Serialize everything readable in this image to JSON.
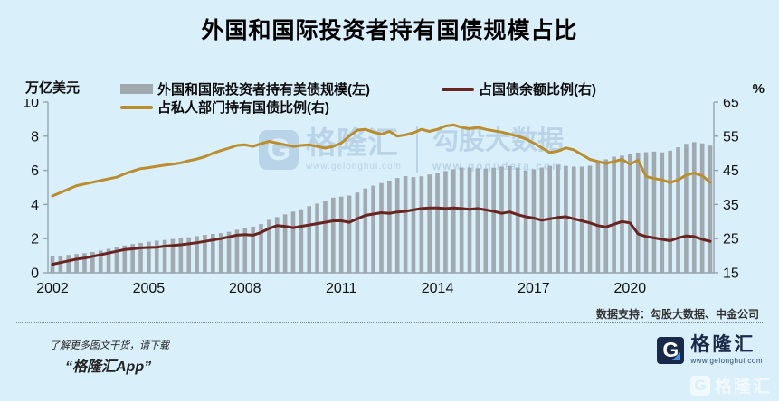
{
  "title": "外国和国际投资者持有国债规模占比",
  "legend": [
    {
      "label": "外国和国际投资者持有美债规模(左)",
      "type": "bar",
      "color": "#a0a9b0"
    },
    {
      "label": "占国债余额比例(右)",
      "type": "line",
      "color": "#6a2420"
    },
    {
      "label": "占私人部门持有国债比例(右)",
      "type": "line",
      "color": "#bb8e2d"
    }
  ],
  "axes": {
    "left_unit": "万亿美元",
    "right_unit": "%"
  },
  "watermark": {
    "logo_letter": "G",
    "logo_text": "格隆汇",
    "logo_url": "www.gelonghui.com",
    "brand": "勾股大数据",
    "brand_url": "www.gogudata.com"
  },
  "source_note": "数据支持：勾股大数据、中金公司",
  "footer": {
    "promo_line1": "了解更多图文干货，请下载",
    "promo_line2": "“格隆汇App”",
    "logo_letter": "G",
    "logo_text": "格隆汇",
    "logo_url": "www.gelonghui.com"
  },
  "colors": {
    "background": "#d9eff9",
    "bar": "#a0a9b0",
    "line_red": "#6a2420",
    "line_gold": "#bb8e2d",
    "axis": "#93a3ac",
    "watermark_blue": "#b9d3e8",
    "logo_navy": "#18294a"
  },
  "chart_data": {
    "type": "bar",
    "note": "gray bars on left axis (trillion USD), two lines on right axis (%); quarterly 2002Q1-2022Q3",
    "x_start": "2002Q1",
    "x_freq": "quarterly",
    "x_tick_labels": [
      "2002",
      "2005",
      "2008",
      "2011",
      "2014",
      "2017",
      "2020"
    ],
    "x_tick_indices": [
      0,
      12,
      24,
      36,
      48,
      60,
      72
    ],
    "y_left": {
      "label": "万亿美元",
      "range": [
        0,
        10
      ],
      "ticks": [
        0,
        2,
        4,
        6,
        8,
        10
      ]
    },
    "y_right": {
      "label": "%",
      "range": [
        15,
        65
      ],
      "ticks": [
        15,
        25,
        35,
        45,
        55,
        65
      ]
    },
    "grid": false,
    "legend_position": "top",
    "series": [
      {
        "name": "外国和国际投资者持有美债规模(左)",
        "type": "bar",
        "axis": "left",
        "color": "#a0a9b0",
        "values": [
          0.95,
          1.0,
          1.05,
          1.1,
          1.15,
          1.22,
          1.3,
          1.4,
          1.5,
          1.6,
          1.68,
          1.75,
          1.82,
          1.88,
          1.92,
          1.98,
          2.02,
          2.08,
          2.15,
          2.22,
          2.28,
          2.32,
          2.4,
          2.52,
          2.62,
          2.7,
          2.85,
          3.1,
          3.26,
          3.42,
          3.58,
          3.72,
          3.9,
          4.05,
          4.22,
          4.4,
          4.46,
          4.52,
          4.7,
          4.94,
          5.1,
          5.25,
          5.4,
          5.55,
          5.66,
          5.6,
          5.65,
          5.76,
          5.86,
          5.96,
          6.06,
          6.16,
          6.16,
          6.12,
          6.1,
          6.15,
          6.22,
          6.26,
          6.16,
          6.0,
          6.06,
          6.16,
          6.26,
          6.32,
          6.26,
          6.22,
          6.22,
          6.27,
          6.46,
          6.64,
          6.8,
          6.86,
          6.96,
          7.04,
          7.06,
          7.1,
          7.05,
          7.15,
          7.35,
          7.55,
          7.65,
          7.58,
          7.45
        ]
      },
      {
        "name": "占国债余额比例(右)",
        "type": "line",
        "axis": "right",
        "color": "#6a2420",
        "values": [
          17.5,
          18.0,
          18.5,
          19.0,
          19.3,
          19.8,
          20.3,
          20.8,
          21.3,
          21.8,
          22.0,
          22.3,
          22.4,
          22.5,
          22.8,
          23.0,
          23.2,
          23.5,
          23.8,
          24.2,
          24.6,
          25.0,
          25.5,
          26.0,
          26.2,
          26.0,
          26.8,
          28.0,
          28.8,
          28.6,
          28.2,
          28.6,
          29.0,
          29.4,
          29.8,
          30.2,
          30.2,
          29.8,
          30.8,
          31.8,
          32.2,
          32.6,
          32.4,
          32.8,
          33.0,
          33.4,
          33.8,
          34.0,
          34.0,
          33.8,
          34.0,
          33.8,
          33.6,
          33.8,
          33.4,
          33.0,
          32.4,
          32.8,
          32.0,
          31.4,
          31.0,
          30.4,
          30.8,
          31.2,
          31.4,
          30.8,
          30.2,
          29.6,
          28.8,
          28.4,
          29.2,
          30.0,
          29.6,
          26.4,
          25.6,
          25.2,
          24.8,
          24.4,
          25.2,
          25.8,
          25.6,
          24.8,
          24.2
        ]
      },
      {
        "name": "占私人部门持有国债比例(右)",
        "type": "line",
        "axis": "right",
        "color": "#bb8e2d",
        "values": [
          37.5,
          38.5,
          39.5,
          40.5,
          41.0,
          41.5,
          42.0,
          42.5,
          43.0,
          44.0,
          44.8,
          45.5,
          45.8,
          46.2,
          46.5,
          46.8,
          47.2,
          47.8,
          48.3,
          49.0,
          50.0,
          50.8,
          51.5,
          52.3,
          52.5,
          52.0,
          52.8,
          53.5,
          53.0,
          52.5,
          52.0,
          52.3,
          52.5,
          52.0,
          51.5,
          52.0,
          53.0,
          55.0,
          56.8,
          57.0,
          56.2,
          55.6,
          56.4,
          55.0,
          55.4,
          56.0,
          57.0,
          56.4,
          57.0,
          58.0,
          58.3,
          57.6,
          57.2,
          57.6,
          57.0,
          56.6,
          56.2,
          55.6,
          55.0,
          54.2,
          53.0,
          51.6,
          50.2,
          50.6,
          51.6,
          51.0,
          49.6,
          48.2,
          47.6,
          47.0,
          47.6,
          48.2,
          46.8,
          48.0,
          43.2,
          42.6,
          42.2,
          41.4,
          42.2,
          43.6,
          44.2,
          43.4,
          41.5
        ]
      }
    ]
  }
}
